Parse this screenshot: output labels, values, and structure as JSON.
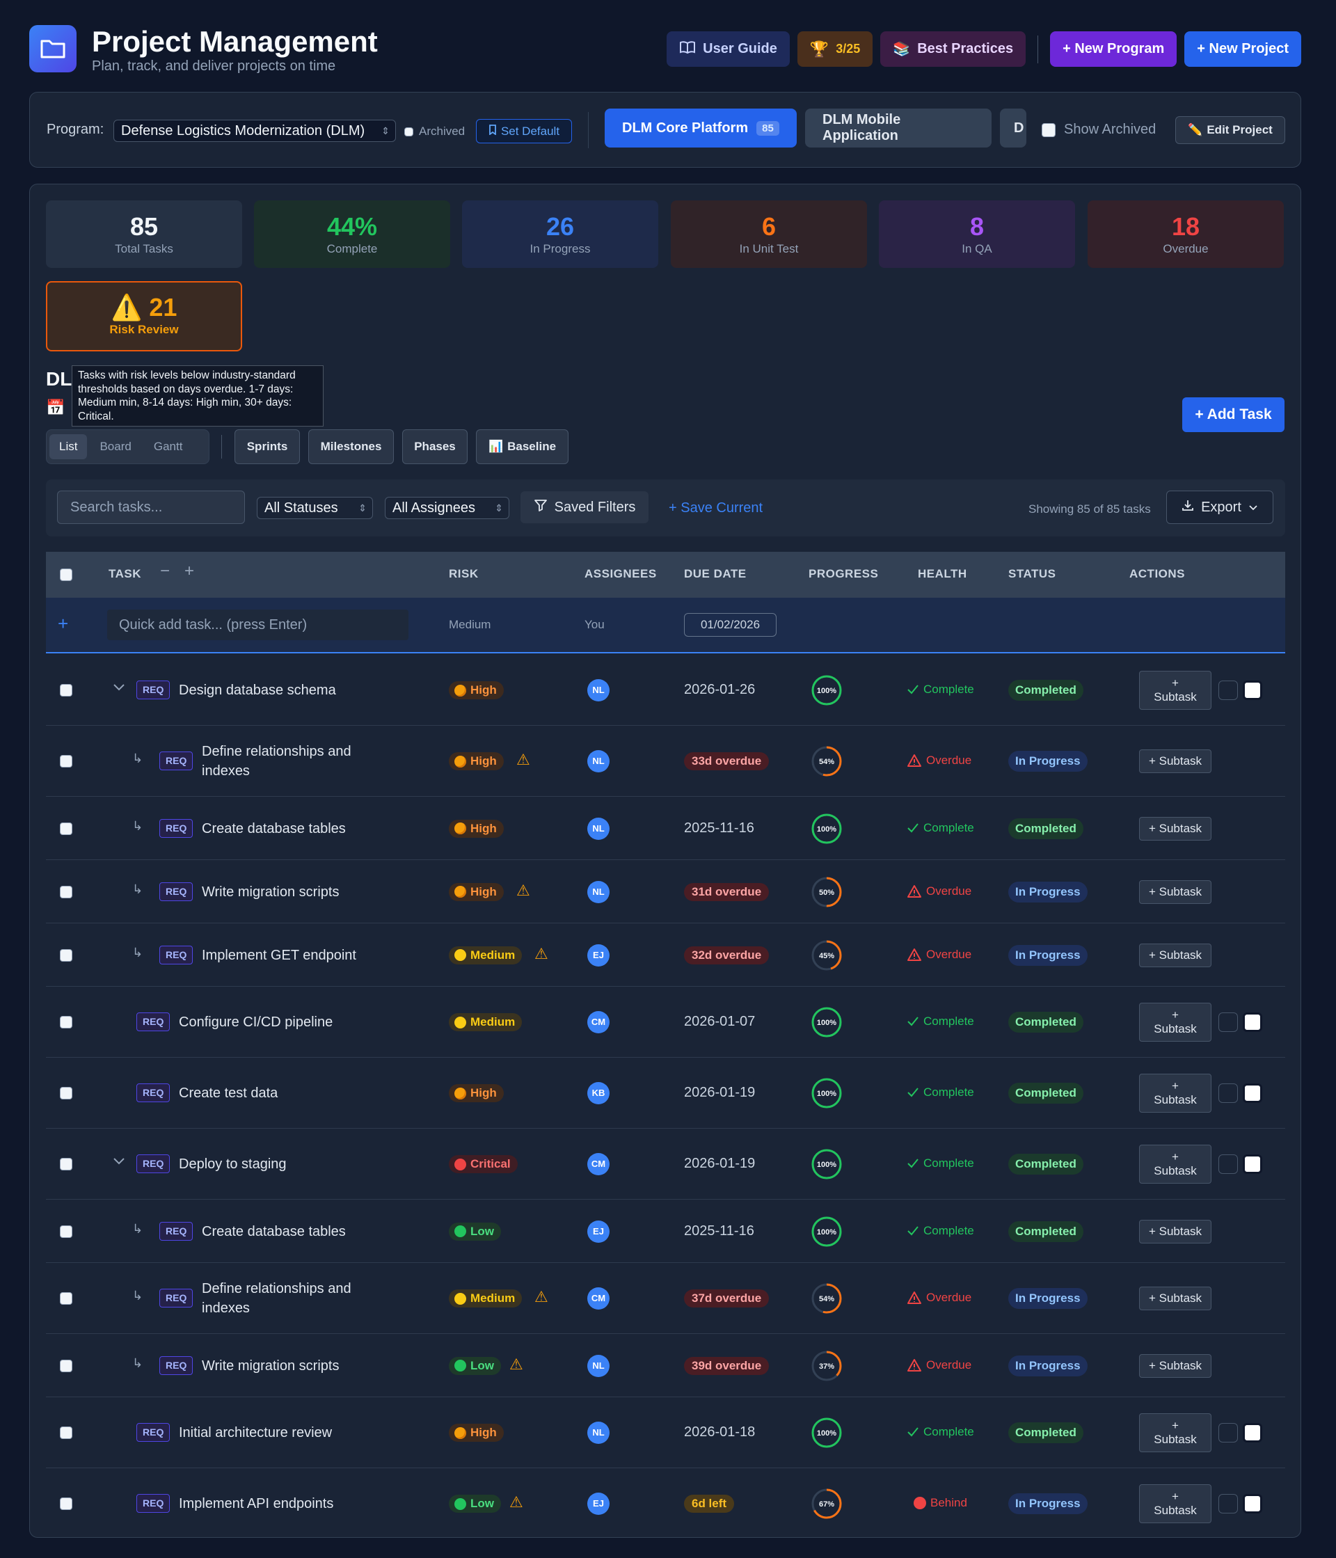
{
  "header": {
    "title": "Project Management",
    "subtitle": "Plan, track, and deliver projects on time",
    "user_guide": "User Guide",
    "achievements": "3/25",
    "best_practices": "Best Practices",
    "new_program": "+ New Program",
    "new_project": "+ New Project"
  },
  "program_bar": {
    "label": "Program:",
    "program": "Defense Logistics Modernization (DLM)",
    "archived": "Archived",
    "set_default": "Set Default",
    "tabs": [
      {
        "label": "DLM Core Platform",
        "count": "85"
      },
      {
        "label": "DLM Mobile Application"
      },
      {
        "label": "D"
      }
    ],
    "show_archived": "Show Archived",
    "edit_project": "Edit Project"
  },
  "stats": [
    {
      "value": "85",
      "label": "Total Tasks",
      "color": "#f1f5f9",
      "bg": "#253144"
    },
    {
      "value": "44%",
      "label": "Complete",
      "color": "#22c55e",
      "bg": "#1b2f2a"
    },
    {
      "value": "26",
      "label": "In Progress",
      "color": "#3b82f6",
      "bg": "#1e2a4a"
    },
    {
      "value": "6",
      "label": "In Unit Test",
      "color": "#f97316",
      "bg": "#302328"
    },
    {
      "value": "8",
      "label": "In QA",
      "color": "#a855f7",
      "bg": "#2a2346"
    },
    {
      "value": "18",
      "label": "Overdue",
      "color": "#ef4444",
      "bg": "#33212a"
    }
  ],
  "risk_review": {
    "value": "21",
    "label": "Risk Review"
  },
  "project_title": "DL",
  "tooltip": "Tasks with risk levels below industry-standard thresholds based on days overdue. 1-7 days: Medium min, 8-14 days: High min, 30+ days: Critical.",
  "add_task": "+ Add Task",
  "views": {
    "list": "List",
    "board": "Board",
    "gantt": "Gantt",
    "sprints": "Sprints",
    "milestones": "Milestones",
    "phases": "Phases",
    "baseline": "Baseline"
  },
  "filters": {
    "search_placeholder": "Search tasks...",
    "status": "All Statuses",
    "assignee": "All Assignees",
    "saved": "Saved Filters",
    "save_current": "+ Save Current",
    "showing": "Showing 85 of 85 tasks",
    "export": "Export"
  },
  "columns": {
    "task": "TASK",
    "risk": "RISK",
    "assignees": "ASSIGNEES",
    "due": "DUE DATE",
    "progress": "PROGRESS",
    "health": "HEALTH",
    "status": "STATUS",
    "actions": "ACTIONS"
  },
  "quick_add": {
    "placeholder": "Quick add task... (press Enter)",
    "risk": "Medium",
    "assignee": "You",
    "date": "01/02/2026"
  },
  "tasks": [
    {
      "name": "Design database schema",
      "tag": "REQ",
      "level": 0,
      "expand": true,
      "risk": "High",
      "risk_key": "high",
      "warn": false,
      "assignee": "NL",
      "due": "2026-01-26",
      "due_type": "date",
      "progress": 100,
      "health": "Complete",
      "health_key": "ok",
      "status": "Completed",
      "status_key": "c",
      "subtask": "+ Subtask",
      "two": true
    },
    {
      "name": "Define relationships and indexes",
      "tag": "REQ",
      "level": 1,
      "risk": "High",
      "risk_key": "high",
      "warn": true,
      "assignee": "NL",
      "due": "33d overdue",
      "due_type": "od",
      "progress": 54,
      "health": "Overdue",
      "health_key": "bad",
      "status": "In Progress",
      "status_key": "p",
      "subtask": "+ Subtask",
      "two": false
    },
    {
      "name": "Create database tables",
      "tag": "REQ",
      "level": 1,
      "risk": "High",
      "risk_key": "high",
      "warn": false,
      "assignee": "NL",
      "due": "2025-11-16",
      "due_type": "date",
      "progress": 100,
      "health": "Complete",
      "health_key": "ok",
      "status": "Completed",
      "status_key": "c",
      "subtask": "+ Subtask",
      "two": false
    },
    {
      "name": "Write migration scripts",
      "tag": "REQ",
      "level": 1,
      "risk": "High",
      "risk_key": "high",
      "warn": true,
      "assignee": "NL",
      "due": "31d overdue",
      "due_type": "od",
      "progress": 50,
      "health": "Overdue",
      "health_key": "bad",
      "status": "In Progress",
      "status_key": "p",
      "subtask": "+ Subtask",
      "two": false
    },
    {
      "name": "Implement GET endpoint",
      "tag": "REQ",
      "level": 1,
      "risk": "Medium",
      "risk_key": "medium",
      "warn": true,
      "assignee": "EJ",
      "due": "32d overdue",
      "due_type": "od",
      "progress": 45,
      "health": "Overdue",
      "health_key": "bad",
      "status": "In Progress",
      "status_key": "p",
      "subtask": "+ Subtask",
      "two": false
    },
    {
      "name": "Configure CI/CD pipeline",
      "tag": "REQ",
      "level": 0,
      "risk": "Medium",
      "risk_key": "medium",
      "warn": false,
      "assignee": "CM",
      "due": "2026-01-07",
      "due_type": "date",
      "progress": 100,
      "health": "Complete",
      "health_key": "ok",
      "status": "Completed",
      "status_key": "c",
      "subtask": "+ Subtask",
      "two": true
    },
    {
      "name": "Create test data",
      "tag": "REQ",
      "level": 0,
      "risk": "High",
      "risk_key": "high",
      "warn": false,
      "assignee": "KB",
      "due": "2026-01-19",
      "due_type": "date",
      "progress": 100,
      "health": "Complete",
      "health_key": "ok",
      "status": "Completed",
      "status_key": "c",
      "subtask": "+ Subtask",
      "two": true
    },
    {
      "name": "Deploy to staging",
      "tag": "REQ",
      "level": 0,
      "expand": true,
      "risk": "Critical",
      "risk_key": "critical",
      "warn": false,
      "assignee": "CM",
      "due": "2026-01-19",
      "due_type": "date",
      "progress": 100,
      "health": "Complete",
      "health_key": "ok",
      "status": "Completed",
      "status_key": "c",
      "subtask": "+ Subtask",
      "two": true
    },
    {
      "name": "Create database tables",
      "tag": "REQ",
      "level": 1,
      "risk": "Low",
      "risk_key": "low",
      "warn": false,
      "assignee": "EJ",
      "due": "2025-11-16",
      "due_type": "date",
      "progress": 100,
      "health": "Complete",
      "health_key": "ok",
      "status": "Completed",
      "status_key": "c",
      "subtask": "+ Subtask",
      "two": false
    },
    {
      "name": "Define relationships and indexes",
      "tag": "REQ",
      "level": 1,
      "risk": "Medium",
      "risk_key": "medium",
      "warn": true,
      "assignee": "CM",
      "due": "37d overdue",
      "due_type": "od",
      "progress": 54,
      "health": "Overdue",
      "health_key": "bad",
      "status": "In Progress",
      "status_key": "p",
      "subtask": "+ Subtask",
      "two": false
    },
    {
      "name": "Write migration scripts",
      "tag": "REQ",
      "level": 1,
      "risk": "Low",
      "risk_key": "low",
      "warn": true,
      "assignee": "NL",
      "due": "39d overdue",
      "due_type": "od",
      "progress": 37,
      "health": "Overdue",
      "health_key": "bad",
      "status": "In Progress",
      "status_key": "p",
      "subtask": "+ Subtask",
      "two": false
    },
    {
      "name": "Initial architecture review",
      "tag": "REQ",
      "level": 0,
      "risk": "High",
      "risk_key": "high",
      "warn": false,
      "assignee": "NL",
      "due": "2026-01-18",
      "due_type": "date",
      "progress": 100,
      "health": "Complete",
      "health_key": "ok",
      "status": "Completed",
      "status_key": "c",
      "subtask": "+ Subtask",
      "two": true
    },
    {
      "name": "Implement API endpoints",
      "tag": "REQ",
      "level": 0,
      "risk": "Low",
      "risk_key": "low",
      "warn": true,
      "assignee": "EJ",
      "due": "6d left",
      "due_type": "left",
      "progress": 67,
      "health": "Behind",
      "health_key": "behind",
      "status": "In Progress",
      "status_key": "p",
      "subtask": "+ Subtask",
      "two": true
    }
  ]
}
